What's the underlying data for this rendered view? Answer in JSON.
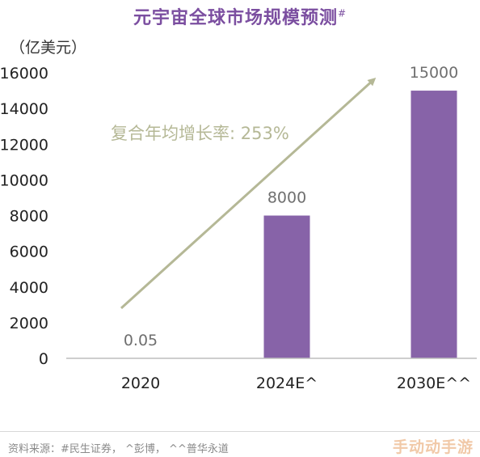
{
  "page": {
    "source": "资料来源：#民生证券，  ^彭博，  ^^普华永道",
    "watermark": "手动动手游"
  },
  "chart_data": {
    "type": "bar",
    "title": "元宇宙全球市场规模预测",
    "title_mark": "#",
    "unit": "（亿美元）",
    "categories": [
      "2020",
      "2024E^",
      "2030E^^"
    ],
    "values": [
      0.05,
      8000,
      15000
    ],
    "value_labels": [
      "0.05",
      "8000",
      "15000"
    ],
    "ylim": [
      0,
      16000
    ],
    "yticks": [
      0,
      2000,
      4000,
      6000,
      8000,
      10000,
      12000,
      14000,
      16000
    ],
    "grid": false,
    "bar_color": "#8763a8",
    "annotation": "复合年均增长率: 253%",
    "annotation_color": "#b5b896"
  }
}
